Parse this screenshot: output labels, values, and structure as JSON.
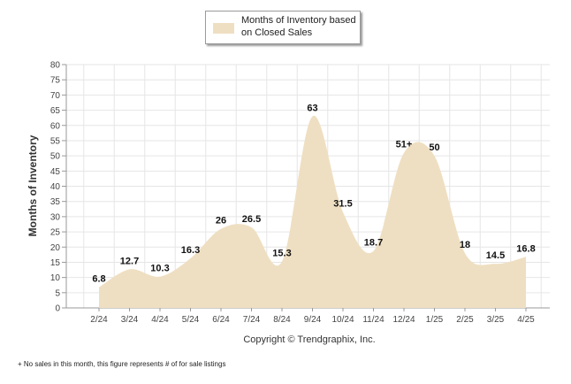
{
  "chart_data": {
    "type": "area",
    "title": "",
    "xlabel": "",
    "ylabel": "Months of Inventory",
    "ylim": [
      0,
      80
    ],
    "yticks": [
      0,
      5,
      10,
      15,
      20,
      25,
      30,
      35,
      40,
      45,
      50,
      55,
      60,
      65,
      70,
      75,
      80
    ],
    "categories": [
      "2/24",
      "3/24",
      "4/24",
      "5/24",
      "6/24",
      "7/24",
      "8/24",
      "9/24",
      "10/24",
      "11/24",
      "12/24",
      "1/25",
      "2/25",
      "3/25",
      "4/25"
    ],
    "series": [
      {
        "name": "Months of Inventory based on Closed Sales",
        "values": [
          6.8,
          12.7,
          10.3,
          16.3,
          26,
          26.5,
          15.3,
          63,
          31.5,
          18.7,
          51,
          50,
          18,
          14.5,
          16.8
        ],
        "labels": [
          "6.8",
          "12.7",
          "10.3",
          "16.3",
          "26",
          "26.5",
          "15.3",
          "63",
          "31.5",
          "18.7",
          "51+",
          "50",
          "18",
          "14.5",
          "16.8"
        ]
      }
    ],
    "grid": true,
    "legend_position": "top-center",
    "fill_color": "#efdfc2"
  },
  "copyright": "Copyright © Trendgraphix, Inc.",
  "footnote": "+ No sales in this month, this figure represents # of for sale listings"
}
